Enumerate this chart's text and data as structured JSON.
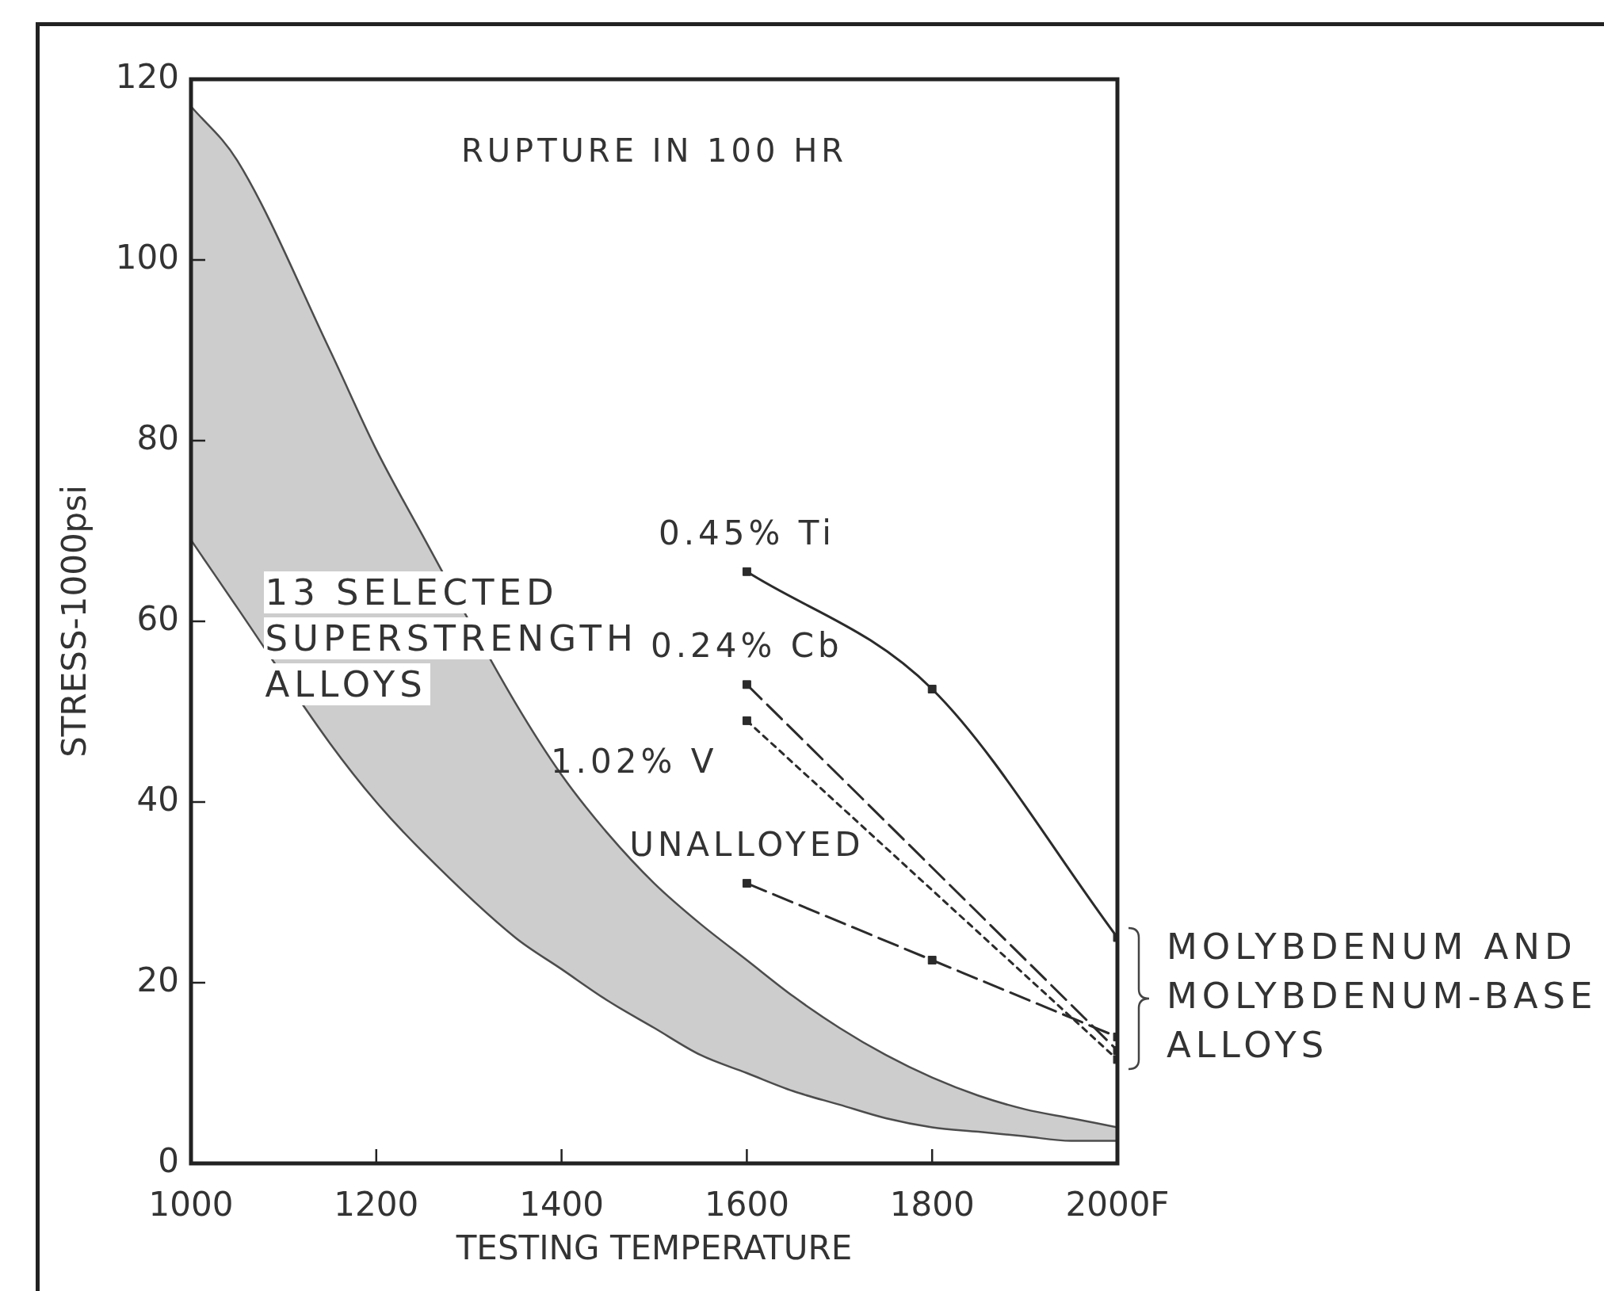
{
  "chart_data": {
    "type": "line",
    "xlabel": "TESTING TEMPERATURE",
    "ylabel": "STRESS-1000psi",
    "xlim": [
      1000,
      2000
    ],
    "xticks": [
      1000,
      1200,
      1400,
      1600,
      1800,
      {
        "value": 2000,
        "label": "2000F"
      }
    ],
    "ylim": [
      0,
      120
    ],
    "yticks": [
      0,
      20,
      40,
      60,
      80,
      100,
      120
    ],
    "annotations": [
      "RUPTURE IN 100 HR",
      "13 SELECTED SUPERSTRENGTH ALLOYS",
      "MOLYBDENUM AND MOLYBDENUM-BASE ALLOYS"
    ],
    "series": [
      {
        "type": "line",
        "color": "#4d4d4d",
        "x": [
          1000,
          1050,
          1150,
          1200,
          1250,
          1350,
          1400,
          1450,
          1500,
          1550,
          1600,
          1650,
          1700,
          1750,
          1800,
          1850,
          1900,
          1950,
          2000
        ],
        "values": [
          117,
          111,
          90,
          79,
          69.5,
          51,
          43,
          36.5,
          31,
          26.5,
          22.5,
          18.5,
          15,
          12,
          9.5,
          7.5,
          6,
          5,
          4
        ],
        "lower": [
          69,
          61.5,
          46.5,
          40,
          34.5,
          25,
          21.5,
          18,
          15,
          12,
          10,
          8,
          6.5,
          5,
          4,
          3.5,
          3,
          2.5,
          2.5
        ],
        "upper": [
          117,
          111,
          90,
          79,
          69.5,
          51,
          43,
          36.5,
          31,
          26.5,
          22.5,
          18.5,
          15,
          12,
          9.5,
          7.5,
          6,
          5,
          4
        ]
      },
      {
        "type": "line",
        "color": "#4d4d4d",
        "x": [
          1000,
          1050,
          1150,
          1200,
          1250,
          1350,
          1400,
          1450,
          1500,
          1550,
          1600,
          1650,
          1700,
          1750,
          1800,
          1850,
          1900,
          1950,
          2000
        ],
        "values": [
          69,
          61.5,
          46.5,
          40,
          34.5,
          25,
          21.5,
          18,
          15,
          12,
          10,
          8,
          6.5,
          5,
          4,
          3.5,
          3,
          2.5,
          2.5
        ]
      },
      {
        "name": "0.45% Ti",
        "color": "#2b2b2b",
        "x": [
          1600,
          1800,
          2000
        ],
        "values": [
          65.5,
          52.5,
          25
        ],
        "marker": "square",
        "line_style": "solid"
      },
      {
        "name": "0.24% Cb",
        "color": "#2b2b2b",
        "x": [
          1600,
          2000
        ],
        "values": [
          53,
          12.5
        ],
        "marker": "square",
        "line_style": "dashed"
      },
      {
        "name": "1.02% V",
        "color": "#2b2b2b",
        "x": [
          1600,
          2000
        ],
        "values": [
          49,
          11.5
        ],
        "marker": "square",
        "line_style": "dotted"
      },
      {
        "name": "UNALLOYED",
        "color": "#2b2b2b",
        "x": [
          1600,
          1800,
          2000
        ],
        "values": [
          31,
          22.5,
          14
        ],
        "marker": "square",
        "line_style": "dashed"
      }
    ]
  }
}
